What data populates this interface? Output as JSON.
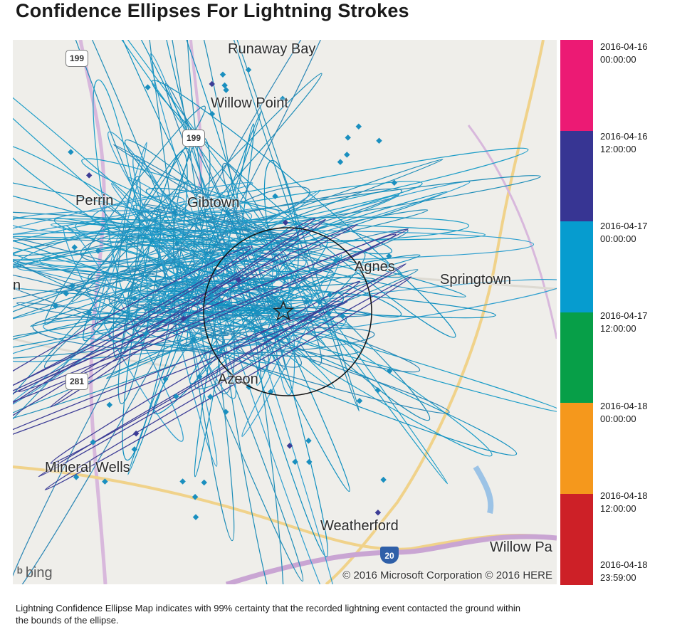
{
  "title": "Confidence Ellipses For Lightning Strokes",
  "map": {
    "places": [
      {
        "name": "Runaway Bay",
        "pos": [
          302,
          2
        ]
      },
      {
        "name": "Willow Point",
        "pos": [
          278,
          78
        ]
      },
      {
        "name": "Perrin",
        "pos": [
          88,
          215
        ]
      },
      {
        "name": "Gibtown",
        "pos": [
          245,
          218
        ]
      },
      {
        "name": "Agnes",
        "pos": [
          480,
          308
        ]
      },
      {
        "name": "Springtown",
        "pos": [
          600,
          326
        ]
      },
      {
        "name": "n",
        "pos": [
          0,
          334
        ]
      },
      {
        "name": "Azeon",
        "pos": [
          288,
          466
        ]
      },
      {
        "name": "Mineral Wells",
        "pos": [
          45,
          590
        ]
      },
      {
        "name": "Weatherford",
        "pos": [
          432,
          672
        ]
      },
      {
        "name": "Willow Pa",
        "pos": [
          670,
          702
        ]
      }
    ],
    "road_shields": [
      "199",
      "199",
      "281"
    ],
    "interstate_shield": "20",
    "bing_label": "bing",
    "copyright": "© 2016 Microsoft Corporation © 2016 HERE"
  },
  "legend": {
    "colors": [
      "#ec1a74",
      "#373593",
      "#069ccf",
      "#079f48",
      "#f5981c",
      "#cd2027"
    ],
    "ticks": [
      "2016-04-16\n00:00:00",
      "2016-04-16\n12:00:00",
      "2016-04-17\n00:00:00",
      "2016-04-17\n12:00:00",
      "2016-04-18\n00:00:00",
      "2016-04-18\n12:00:00",
      "2016-04-18\n23:59:00"
    ]
  },
  "caption": "Lightning Confidence Ellipse Map indicates with 99% certainty that the recorded lightning event contacted the ground within the bounds of the ellipse."
}
